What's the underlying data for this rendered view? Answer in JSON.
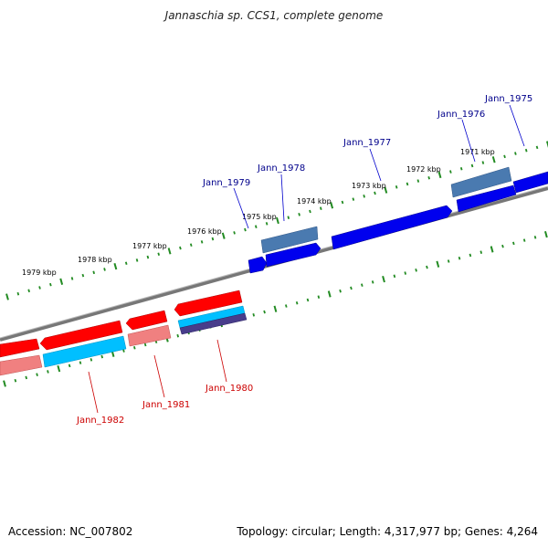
{
  "title": "Jannaschia sp. CCS1, complete genome",
  "footer": {
    "accession": "Accession: NC_007802",
    "topology": "Topology: circular; Length: 4,317,977 bp; Genes: 4,264"
  },
  "outer_ruler_labels": [
    "1979 kbp",
    "1978 kbp",
    "1977 kbp",
    "1976 kbp",
    "1975 kbp",
    "1974 kbp",
    "1973 kbp",
    "1972 kbp",
    "1971 kbp"
  ],
  "genes_top": [
    "Jann_1979",
    "Jann_1978",
    "Jann_1977",
    "Jann_1976",
    "Jann_1975"
  ],
  "genes_bottom": [
    "Jann_1982",
    "Jann_1981",
    "Jann_1980"
  ],
  "colors": {
    "forward_gene": "#0000ee",
    "forward_gene_shade": "#4a7ab0",
    "reverse_gene": "#ff0000",
    "reverse_gene_shade": "#f08080",
    "cyan_gene": "#00bfff",
    "backbone": "#888888",
    "tick": "#228b22",
    "forward_label": "#00008b",
    "reverse_label": "#cc0000"
  }
}
